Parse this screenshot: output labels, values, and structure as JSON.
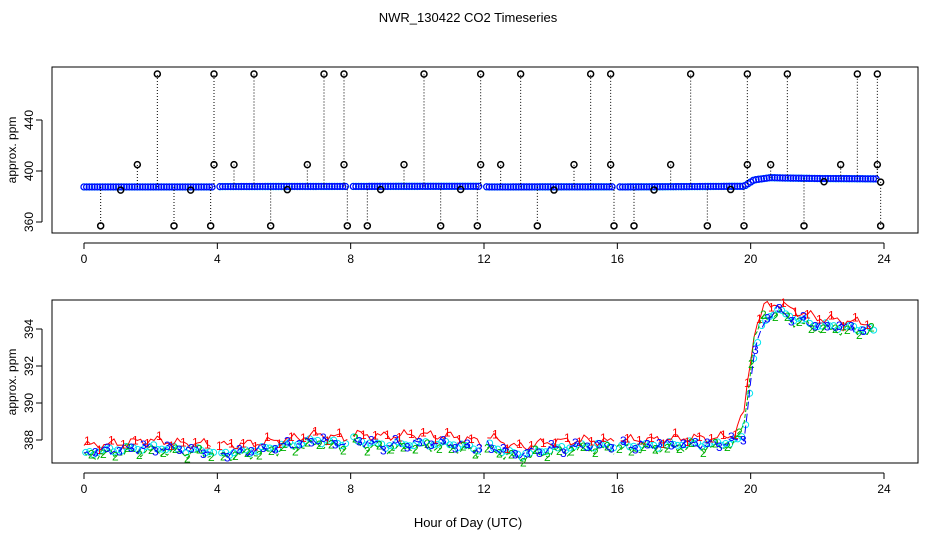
{
  "title": "NWR_130422  CO2 Timeseries",
  "xlabel": "Hour of Day (UTC)",
  "colors": {
    "axis": "#000000",
    "series_black": "#000000",
    "series_red": "#ff0000",
    "series_green": "#00b000",
    "series_blue": "#0000ff",
    "series_cyan": "#00e5ee"
  },
  "chart_data": [
    {
      "type": "scatter",
      "ylabel": "approx. ppm",
      "xlim": [
        0,
        24
      ],
      "ylim": [
        360,
        470
      ],
      "x_ticks": [
        0,
        4,
        8,
        12,
        16,
        20,
        24
      ],
      "y_ticks": [
        360,
        400,
        440
      ],
      "grid": false,
      "series": [
        {
          "marker": "circle",
          "color": "black",
          "spikes_high": [
            2.2,
            3.9,
            5.1,
            7.2,
            7.8,
            10.2,
            11.9,
            13.1,
            15.2,
            15.8,
            18.2,
            19.9,
            21.1,
            23.2,
            23.8
          ],
          "spikes_mid": [
            1.6,
            3.9,
            4.5,
            6.7,
            7.8,
            9.6,
            11.9,
            12.5,
            14.7,
            15.8,
            17.6,
            19.9,
            20.6,
            22.7,
            23.8
          ],
          "spikes_low": [
            0.5,
            2.7,
            3.8,
            5.6,
            7.9,
            8.5,
            10.7,
            11.8,
            13.6,
            15.9,
            16.5,
            18.7,
            19.8,
            21.6,
            23.9
          ],
          "dips": [
            1.1,
            3.2,
            6.1,
            8.9,
            11.3,
            14.1,
            17.1,
            19.4,
            22.2,
            23.9
          ]
        },
        {
          "marker": "dense line",
          "color": "blue",
          "x": [
            0,
            4,
            4.1,
            12,
            12.1,
            16,
            16.1,
            19.8,
            20.1,
            20.6,
            21,
            22,
            23,
            23.8
          ],
          "y": [
            387.5,
            387.5,
            387.8,
            388,
            387.5,
            387.6,
            387.5,
            388,
            393,
            394.8,
            394.5,
            394.1,
            394,
            393.8
          ]
        }
      ]
    },
    {
      "type": "line",
      "ylabel": "approx. ppm",
      "xlim": [
        0,
        24
      ],
      "ylim": [
        386.8,
        395.6
      ],
      "x_ticks": [
        0,
        4,
        8,
        12,
        16,
        20,
        24
      ],
      "y_ticks": [
        388,
        390,
        392,
        394
      ],
      "grid": false,
      "point_labels": [
        "1",
        "2",
        "3"
      ],
      "series": [
        {
          "marker": "1",
          "color": "red",
          "x": [
            0,
            1,
            2,
            3,
            3.8,
            4.1,
            5,
            6,
            7,
            7.8,
            8.1,
            9,
            10,
            11,
            11.9,
            12.1,
            13,
            14,
            15,
            15.8,
            16.1,
            17,
            18,
            19,
            19.5,
            19.8,
            20.1,
            20.4,
            20.8,
            21.3,
            22,
            23,
            23.7
          ],
          "y": [
            387.7,
            387.8,
            388,
            387.8,
            387.8,
            387.7,
            387.8,
            388,
            388.3,
            388.1,
            388.3,
            388.2,
            388.3,
            388.2,
            387.9,
            388.2,
            387.6,
            387.9,
            388,
            387.9,
            388,
            388,
            388.1,
            388.1,
            388.3,
            389.5,
            393.8,
            395.2,
            395.4,
            395,
            394.6,
            394.4,
            394.3
          ]
        },
        {
          "marker": "2",
          "color": "green",
          "x": [
            0,
            1,
            2,
            3,
            3.8,
            4.1,
            5,
            6,
            7,
            7.8,
            8.1,
            9,
            10,
            11,
            11.9,
            12.1,
            13,
            14,
            15,
            15.8,
            16.1,
            17,
            18,
            19,
            19.5,
            19.8,
            20.1,
            20.4,
            20.8,
            21.3,
            22,
            23,
            23.7
          ],
          "y": [
            387.1,
            387.3,
            387.4,
            387.3,
            387.2,
            387.1,
            387.2,
            387.5,
            387.8,
            387.6,
            387.8,
            387.5,
            387.6,
            387.6,
            387.3,
            387.5,
            387,
            387.3,
            387.5,
            387.5,
            387.5,
            387.5,
            387.6,
            387.6,
            387.8,
            388.8,
            393.5,
            394.6,
            394.9,
            394.4,
            394,
            393.9,
            393.8
          ]
        },
        {
          "marker": "3",
          "color": "blue",
          "x": [
            0,
            1,
            2,
            3,
            3.8,
            4.1,
            5,
            6,
            7,
            7.8,
            8.1,
            9,
            10,
            11,
            11.9,
            12.1,
            13,
            14,
            15,
            15.8,
            16.1,
            17,
            18,
            19,
            19.5,
            19.8,
            20.1,
            20.4,
            20.8,
            21.3,
            22,
            23,
            23.7
          ],
          "y": [
            387.3,
            387.5,
            387.6,
            387.5,
            387.4,
            387.3,
            387.4,
            387.7,
            388,
            387.8,
            388,
            387.7,
            387.8,
            387.8,
            387.5,
            387.7,
            387.2,
            387.5,
            387.7,
            387.7,
            387.7,
            387.7,
            387.8,
            387.8,
            387.9,
            388.2,
            392.5,
            394.5,
            395,
            394.6,
            394.2,
            394.1,
            393.9
          ]
        }
      ]
    }
  ]
}
